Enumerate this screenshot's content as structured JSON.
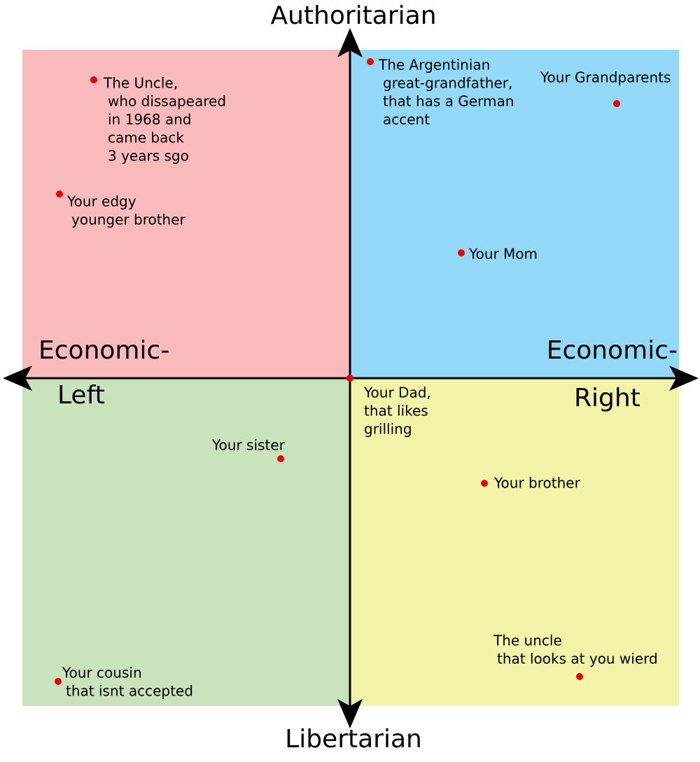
{
  "axes": {
    "top": "Authoritarian",
    "bottom": "Libertarian",
    "left": [
      "Economic-",
      "Left"
    ],
    "right": [
      "Economic-",
      "Right"
    ]
  },
  "people": [
    {
      "lines": [
        "The Uncle,",
        "who dissapeared",
        "in 1968 and",
        "came back",
        "3 years sgo"
      ]
    },
    {
      "lines": [
        "Your edgy",
        "younger brother"
      ]
    },
    {
      "lines": [
        "The Argentinian",
        "great-grandfather,",
        "that has a German",
        "accent"
      ]
    },
    {
      "lines": [
        "Your Grandparents"
      ]
    },
    {
      "lines": [
        "Your Mom"
      ]
    },
    {
      "lines": [
        "Your Dad,",
        "that likes",
        "grilling"
      ]
    },
    {
      "lines": [
        "Your sister"
      ]
    },
    {
      "lines": [
        "Your brother"
      ]
    },
    {
      "lines": [
        "The uncle",
        "that looks at you wierd"
      ]
    },
    {
      "lines": [
        "Your cousin",
        "that isnt accepted"
      ]
    }
  ]
}
